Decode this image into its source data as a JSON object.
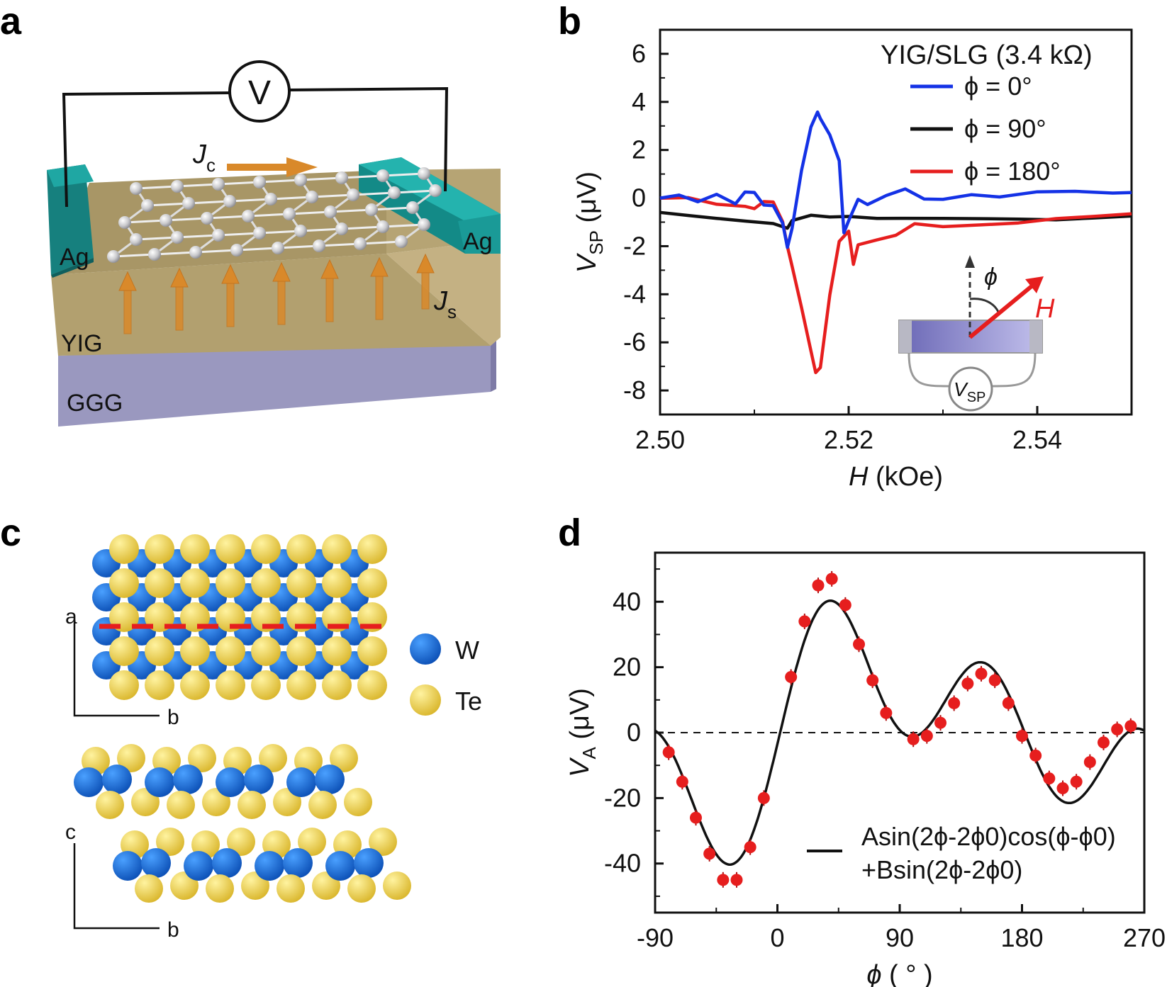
{
  "panels": {
    "a": {
      "label": "a",
      "voltmeter": "V",
      "jc_main": "J",
      "jc_sub": "c",
      "js_main": "J",
      "js_sub": "s",
      "electrode_left": "Ag",
      "electrode_right": "Ag",
      "layer_yig": "YIG",
      "layer_ggg": "GGG",
      "colors": {
        "ag": "#1a9a97",
        "yig": "#b9a57a",
        "ggg": "#9a98bf",
        "arrow": "#d9892a"
      }
    },
    "b": {
      "label": "b",
      "inset": {
        "phi": "ϕ",
        "h": "H",
        "vsp_main": "V",
        "vsp_sub": "SP"
      }
    },
    "c": {
      "label": "c",
      "axis_a": "a",
      "axis_b_top": "b",
      "axis_c": "c",
      "axis_b_bottom": "b",
      "legend": [
        {
          "label": "W",
          "color": "#1b6fd6"
        },
        {
          "label": "Te",
          "color": "#f2d54a"
        }
      ]
    },
    "d": {
      "label": "d",
      "legend_line1": "Asin(2ϕ-2ϕ0)cos(ϕ-ϕ0)",
      "legend_line2": "+Bsin(2ϕ-2ϕ0)"
    }
  },
  "chart_data": [
    {
      "id": "b",
      "type": "line",
      "title": "YIG/SLG (3.4 kΩ)",
      "xlabel_main": "H",
      "xlabel_unit": "(kOe)",
      "ylabel_main": "V",
      "ylabel_sub": "SP",
      "ylabel_unit": "(μV)",
      "xlim": [
        2.5,
        2.55
      ],
      "ylim": [
        -9,
        7
      ],
      "xticks": [
        "2.50",
        "2.52",
        "2.54"
      ],
      "xtick_values": [
        2.5,
        2.52,
        2.54
      ],
      "yticks": [
        "6",
        "4",
        "2",
        "0",
        "-2",
        "-4",
        "-6",
        "-8"
      ],
      "ytick_values": [
        6,
        4,
        2,
        0,
        -2,
        -4,
        -6,
        -8
      ],
      "series": [
        {
          "name": "ϕ = 0°",
          "color": "#1432e6",
          "x": [
            2.5,
            2.502,
            2.504,
            2.506,
            2.508,
            2.509,
            2.51,
            2.511,
            2.512,
            2.513,
            2.5135,
            2.514,
            2.515,
            2.516,
            2.5167,
            2.517,
            2.518,
            2.519,
            2.5195,
            2.52,
            2.521,
            2.522,
            2.524,
            2.526,
            2.528,
            2.53,
            2.533,
            2.536,
            2.54,
            2.544,
            2.548,
            2.55
          ],
          "values": [
            0.0,
            0.1,
            -0.2,
            0.1,
            -0.3,
            0.2,
            0.2,
            -0.3,
            -0.3,
            -1.0,
            -2.0,
            -1.2,
            1.2,
            3.0,
            3.6,
            3.3,
            2.6,
            1.5,
            -1.5,
            -1.0,
            -0.1,
            -0.3,
            0.1,
            0.4,
            0.0,
            0.0,
            0.2,
            0.1,
            0.3,
            0.3,
            0.2,
            0.2
          ]
        },
        {
          "name": "ϕ = 90°",
          "color": "#111111",
          "x": [
            2.5,
            2.503,
            2.506,
            2.509,
            2.512,
            2.5135,
            2.514,
            2.516,
            2.518,
            2.52,
            2.523,
            2.526,
            2.53,
            2.534,
            2.538,
            2.542,
            2.546,
            2.55
          ],
          "values": [
            -0.6,
            -0.7,
            -0.8,
            -0.9,
            -1.0,
            -1.2,
            -0.9,
            -0.7,
            -0.8,
            -0.8,
            -0.9,
            -0.9,
            -0.9,
            -0.9,
            -0.9,
            -0.9,
            -0.8,
            -0.7
          ]
        },
        {
          "name": "ϕ = 180°",
          "color": "#e61e1e",
          "x": [
            2.5,
            2.503,
            2.506,
            2.509,
            2.51,
            2.511,
            2.512,
            2.513,
            2.5135,
            2.514,
            2.515,
            2.516,
            2.5165,
            2.517,
            2.518,
            2.519,
            2.52,
            2.5205,
            2.521,
            2.523,
            2.525,
            2.527,
            2.53,
            2.534,
            2.538,
            2.542,
            2.546,
            2.55
          ],
          "values": [
            0.0,
            0.0,
            -0.3,
            -0.4,
            -0.5,
            -0.2,
            -0.2,
            -1.0,
            -2.0,
            -2.8,
            -4.5,
            -6.3,
            -7.2,
            -7.0,
            -4.0,
            -1.8,
            -1.4,
            -2.8,
            -2.0,
            -1.8,
            -1.6,
            -1.1,
            -1.2,
            -1.1,
            -1.0,
            -0.8,
            -0.7,
            -0.6
          ]
        }
      ]
    },
    {
      "id": "d",
      "type": "scatter",
      "xlabel_main": "ϕ",
      "xlabel_unit": "( ° )",
      "ylabel_main": "V",
      "ylabel_sub": "A",
      "ylabel_unit": "(μV)",
      "xlim": [
        -90,
        270
      ],
      "ylim": [
        -55,
        55
      ],
      "xticks": [
        "-90",
        "0",
        "90",
        "180",
        "270"
      ],
      "xtick_values": [
        -90,
        0,
        90,
        180,
        270
      ],
      "yticks": [
        "40",
        "20",
        "0",
        "-20",
        "-40"
      ],
      "ytick_values": [
        40,
        20,
        0,
        -20,
        -40
      ],
      "zero_line": "dashed",
      "fit": {
        "A": 40,
        "B": 10,
        "phi0": 2,
        "color": "#111111"
      },
      "series": [
        {
          "name": "data",
          "color": "#e61e1e",
          "x": [
            -80,
            -70,
            -60,
            -50,
            -40,
            -30,
            -20,
            -10,
            10,
            20,
            30,
            40,
            50,
            60,
            70,
            80,
            100,
            110,
            120,
            130,
            140,
            150,
            160,
            170,
            180,
            190,
            200,
            210,
            220,
            230,
            240,
            250,
            260
          ],
          "values": [
            -6,
            -15,
            -26,
            -37,
            -45,
            -45,
            -35,
            -20,
            17,
            34,
            45,
            47,
            39,
            27,
            16,
            6,
            -2,
            -1,
            3,
            9,
            15,
            18,
            16,
            9,
            -1,
            -7,
            -14,
            -17,
            -15,
            -9,
            -3,
            1,
            2
          ]
        }
      ]
    }
  ]
}
